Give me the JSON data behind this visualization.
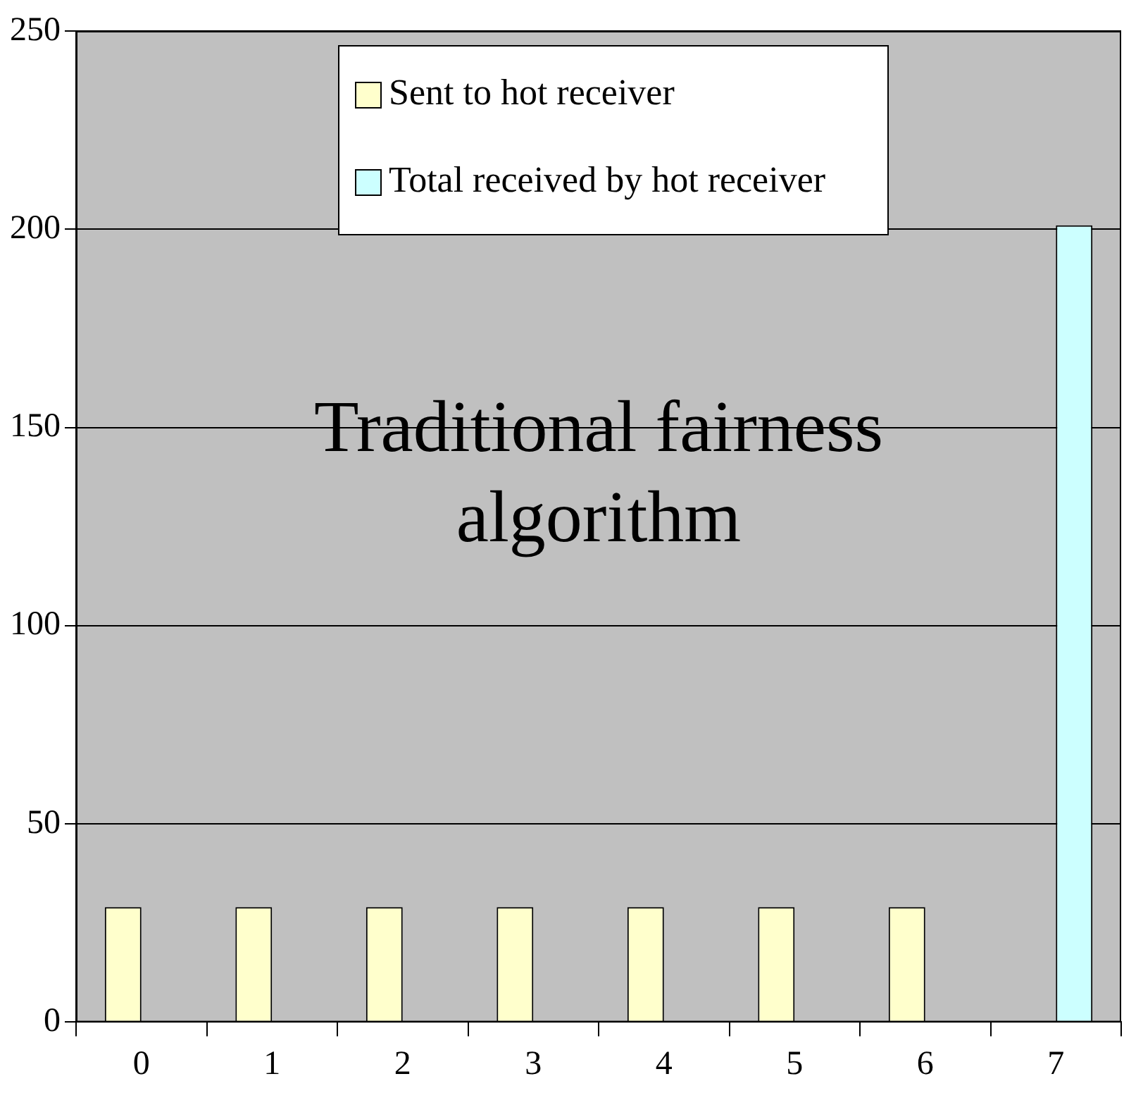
{
  "chart_data": {
    "type": "bar",
    "categories": [
      "0",
      "1",
      "2",
      "3",
      "4",
      "5",
      "6",
      "7"
    ],
    "series": [
      {
        "name": "Sent to hot receiver",
        "color": "#ffffcc",
        "values": [
          29,
          29,
          29,
          29,
          29,
          29,
          29,
          null
        ]
      },
      {
        "name": "Total received by hot receiver",
        "color": "#ccffff",
        "values": [
          null,
          null,
          null,
          null,
          null,
          null,
          null,
          201
        ]
      }
    ],
    "ylim": [
      0,
      250
    ],
    "yticks": [
      0,
      50,
      100,
      150,
      200,
      250
    ],
    "grid": "y",
    "legend": "top",
    "annotations": [
      "Traditional fairness algorithm"
    ]
  }
}
